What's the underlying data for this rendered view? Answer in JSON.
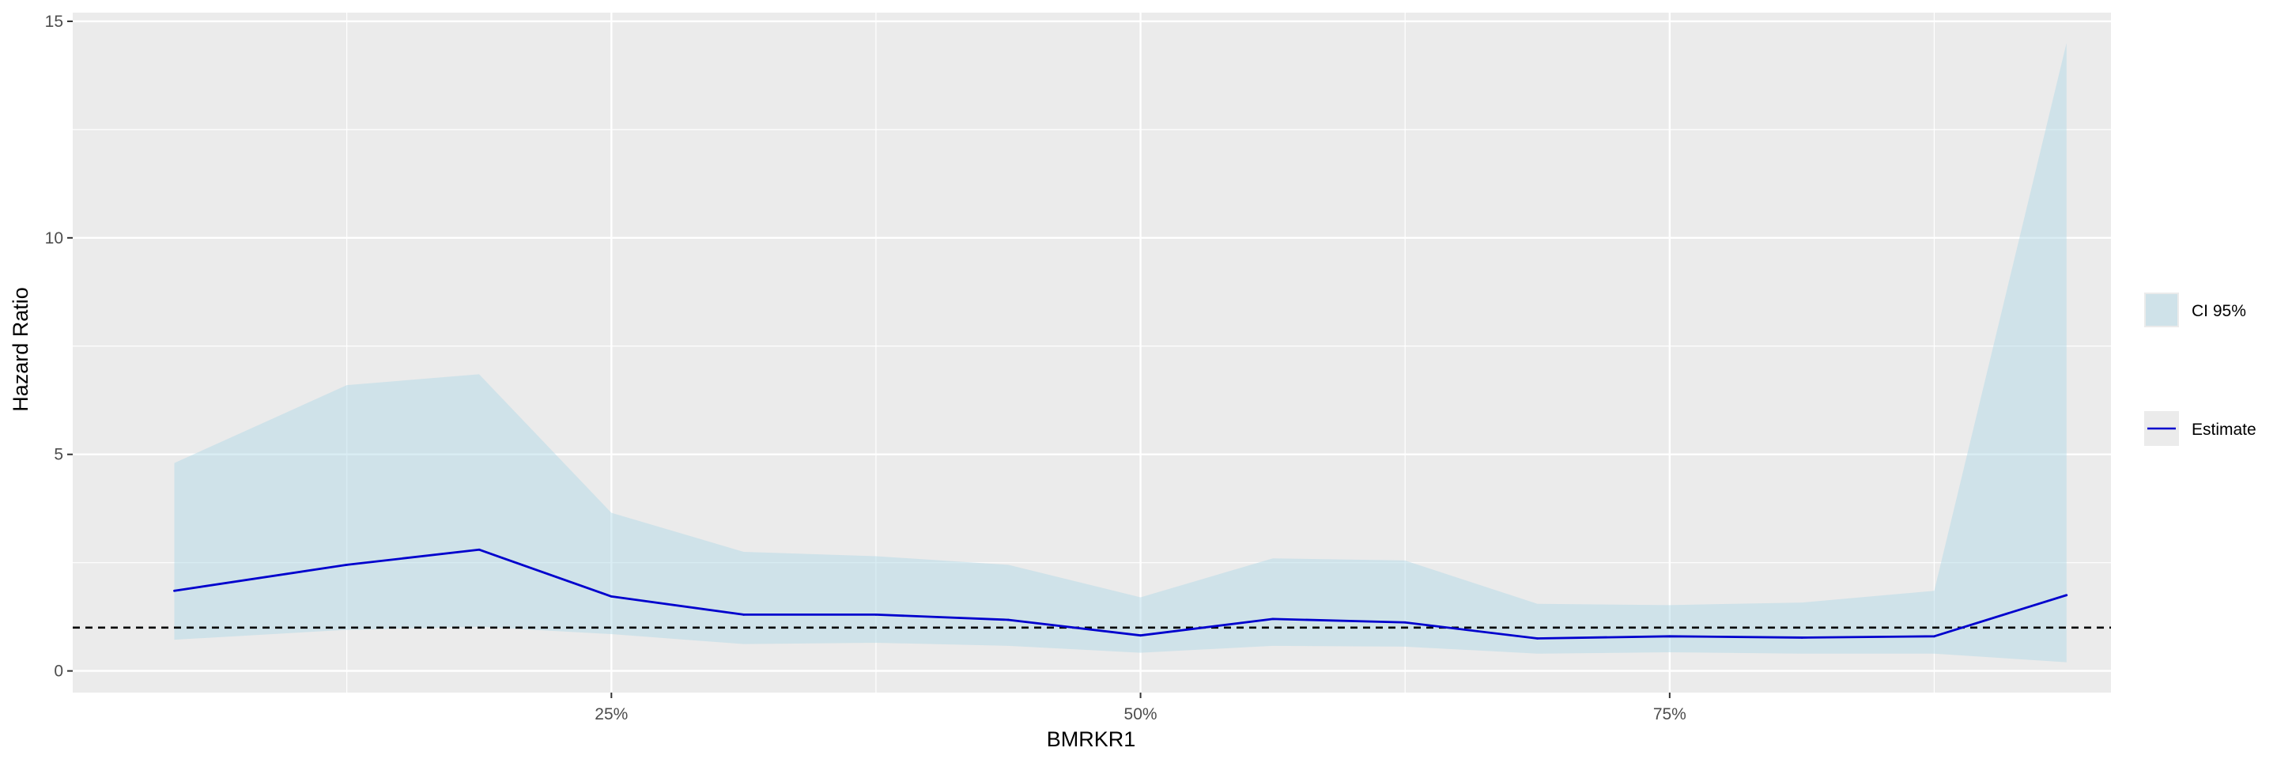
{
  "chart_data": {
    "type": "line",
    "title": "",
    "xlabel": "BMRKR1",
    "ylabel": "Hazard Ratio",
    "x": [
      0.0435,
      0.125,
      0.1875,
      0.25,
      0.3125,
      0.375,
      0.4375,
      0.5,
      0.5625,
      0.625,
      0.6875,
      0.75,
      0.8125,
      0.875,
      0.9375
    ],
    "xlim": [
      -0.0045,
      0.9585
    ],
    "ylim": [
      -0.5,
      15.2
    ],
    "x_ticks": [
      {
        "value": 0.25,
        "label": "25%"
      },
      {
        "value": 0.5,
        "label": "50%"
      },
      {
        "value": 0.75,
        "label": "75%"
      }
    ],
    "x_minor_gridlines": [
      0.125,
      0.375,
      0.625,
      0.875
    ],
    "y_ticks": [
      {
        "value": 0,
        "label": "0"
      },
      {
        "value": 5,
        "label": "5"
      },
      {
        "value": 10,
        "label": "10"
      },
      {
        "value": 15,
        "label": "15"
      }
    ],
    "y_minor_gridlines": [
      2.5,
      7.5,
      12.5
    ],
    "series": [
      {
        "name": "CI 95%",
        "kind": "ribbon",
        "color": "#add8e6",
        "lower": [
          0.72,
          0.95,
          1.02,
          0.85,
          0.62,
          0.65,
          0.58,
          0.42,
          0.58,
          0.56,
          0.4,
          0.43,
          0.4,
          0.4,
          0.2
        ],
        "upper": [
          4.8,
          6.6,
          6.85,
          3.65,
          2.75,
          2.65,
          2.45,
          1.7,
          2.6,
          2.55,
          1.55,
          1.52,
          1.58,
          1.85,
          14.5
        ]
      },
      {
        "name": "Estimate",
        "kind": "line",
        "color": "#0000cd",
        "values": [
          1.85,
          2.45,
          2.8,
          1.72,
          1.3,
          1.3,
          1.18,
          0.82,
          1.2,
          1.12,
          0.75,
          0.8,
          0.77,
          0.8,
          1.75
        ]
      }
    ],
    "reference_line": {
      "y": 1,
      "style": "dashed",
      "color": "#000000"
    },
    "grid": true,
    "panel_background": "#ebebeb",
    "legend_position": "right"
  }
}
